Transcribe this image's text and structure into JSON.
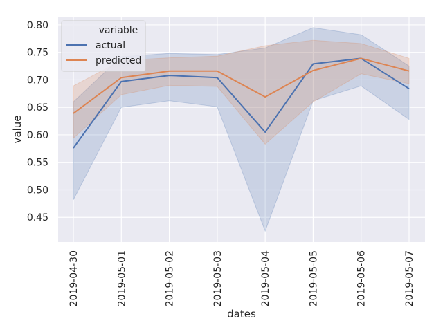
{
  "chart_data": {
    "type": "line",
    "xlabel": "dates",
    "ylabel": "value",
    "x": [
      "2019-04-30",
      "2019-05-01",
      "2019-05-02",
      "2019-05-03",
      "2019-05-04",
      "2019-05-05",
      "2019-05-06",
      "2019-05-07"
    ],
    "ylim": [
      0.405,
      0.815
    ],
    "yticks": [
      "0.45",
      "0.50",
      "0.55",
      "0.60",
      "0.65",
      "0.70",
      "0.75",
      "0.80"
    ],
    "grid": true,
    "background": "#eaeaf2",
    "legend": {
      "title": "variable",
      "placement": "top-left"
    },
    "series": [
      {
        "name": "actual",
        "color": "#4c72b0",
        "values": [
          0.576,
          0.697,
          0.708,
          0.704,
          0.605,
          0.729,
          0.739,
          0.684
        ],
        "band_lower": [
          0.482,
          0.65,
          0.662,
          0.651,
          0.425,
          0.662,
          0.689,
          0.628
        ],
        "band_upper": [
          0.66,
          0.742,
          0.748,
          0.746,
          0.758,
          0.795,
          0.782,
          0.725
        ]
      },
      {
        "name": "predicted",
        "color": "#dd8452",
        "values": [
          0.639,
          0.704,
          0.716,
          0.716,
          0.669,
          0.717,
          0.739,
          0.716
        ],
        "band_lower": [
          0.594,
          0.673,
          0.69,
          0.688,
          0.583,
          0.66,
          0.711,
          0.693
        ],
        "band_upper": [
          0.689,
          0.735,
          0.74,
          0.743,
          0.762,
          0.772,
          0.766,
          0.739
        ]
      }
    ]
  }
}
